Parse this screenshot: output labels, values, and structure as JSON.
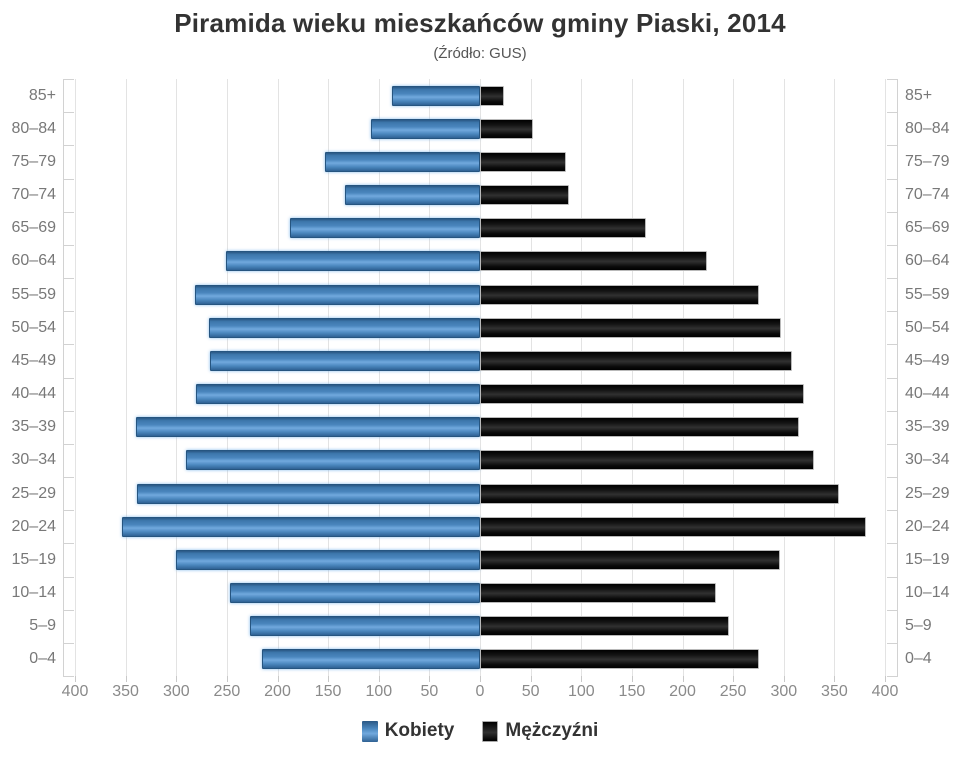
{
  "header": {
    "title": "Piramida wieku mieszkańców gminy Piaski, 2014",
    "subtitle": "(Źródło: GUS)"
  },
  "legend": {
    "female_label": "Kobiety",
    "male_label": "Mężczyźni"
  },
  "colors": {
    "female_bar": "#4a86bd",
    "male_bar": "#111111",
    "title_text": "#333333",
    "axis_text": "#8a8a8a",
    "gridline": "#e3e3e3"
  },
  "chart_data": {
    "type": "bar",
    "variant": "population-pyramid",
    "title": "Piramida wieku mieszkańców gminy Piaski, 2014",
    "subtitle": "(Źródło: GUS)",
    "categories": [
      "85+",
      "80–84",
      "75–79",
      "70–74",
      "65–69",
      "60–64",
      "55–59",
      "50–54",
      "45–49",
      "40–44",
      "35–39",
      "30–34",
      "25–29",
      "20–24",
      "15–19",
      "10–14",
      "5–9",
      "0–4"
    ],
    "series": [
      {
        "name": "Kobiety",
        "side": "left",
        "color": "#4a86bd",
        "values": [
          87,
          108,
          153,
          133,
          188,
          251,
          282,
          268,
          267,
          281,
          340,
          290,
          339,
          354,
          300,
          247,
          227,
          215
        ]
      },
      {
        "name": "Mężczyźni",
        "side": "right",
        "color": "#111111",
        "values": [
          24,
          52,
          85,
          88,
          164,
          224,
          276,
          297,
          308,
          320,
          315,
          330,
          355,
          381,
          296,
          233,
          246,
          276
        ]
      }
    ],
    "x_axis": {
      "min": 0,
      "max": 400,
      "tick_interval": 50,
      "tick_labels": [
        "400",
        "350",
        "300",
        "250",
        "200",
        "150",
        "100",
        "50",
        "0",
        "50",
        "100",
        "150",
        "200",
        "250",
        "300",
        "350",
        "400"
      ]
    },
    "grid": true,
    "legend_position": "bottom"
  }
}
